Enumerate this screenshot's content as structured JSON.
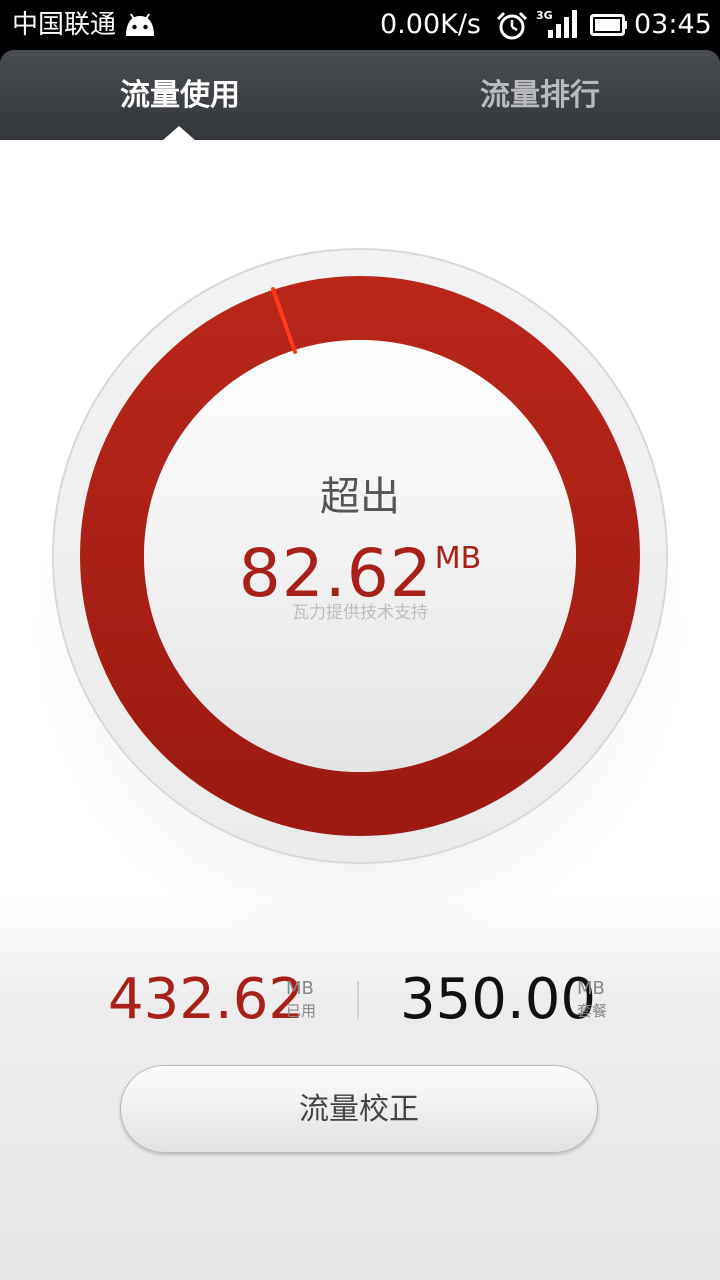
{
  "status_bar": {
    "carrier": "中国联通",
    "net_speed": "0.00K/s",
    "network_type": "3G",
    "time": "03:45",
    "icons": [
      "android-icon",
      "alarm-icon",
      "signal-icon",
      "battery-icon"
    ]
  },
  "tabs": [
    {
      "label": "流量使用",
      "active": true
    },
    {
      "label": "流量排行",
      "active": false
    }
  ],
  "gauge": {
    "status_label": "超出",
    "value": "82.62",
    "unit": "MB",
    "powered_by": "瓦力提供技术支持",
    "ring_color": "#a81c14",
    "needle_color": "#ff3a1a"
  },
  "summary": {
    "used": {
      "value": "432.62",
      "unit": "MB",
      "caption": "已用"
    },
    "plan": {
      "value": "350.00",
      "unit": "MB",
      "caption": "套餐"
    }
  },
  "calibrate_button": {
    "label": "流量校正"
  }
}
